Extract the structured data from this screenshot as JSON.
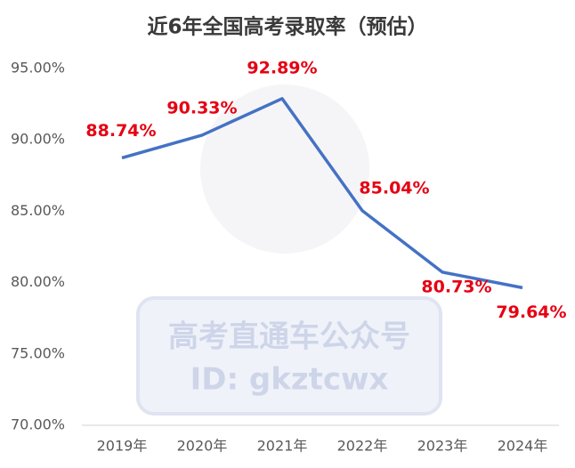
{
  "chart_data": {
    "type": "line",
    "title": "近6年全国高考录取率（预估）",
    "categories": [
      "2019年",
      "2020年",
      "2021年",
      "2022年",
      "2023年",
      "2024年"
    ],
    "series": [
      {
        "name": "录取率",
        "color": "#4472c4",
        "values": [
          88.74,
          90.33,
          92.89,
          85.04,
          80.73,
          79.64
        ],
        "value_labels": [
          "88.74%",
          "90.33%",
          "92.89%",
          "85.04%",
          "80.73%",
          "79.64%"
        ]
      }
    ],
    "value_label_color": "#e60012",
    "ylim": [
      70,
      95
    ],
    "yticks": [
      {
        "value": 70,
        "label": "70.00%"
      },
      {
        "value": 75,
        "label": "75.00%"
      },
      {
        "value": 80,
        "label": "80.00%"
      },
      {
        "value": 85,
        "label": "85.00%"
      },
      {
        "value": 90,
        "label": "90.00%"
      },
      {
        "value": 95,
        "label": "95.00%"
      }
    ],
    "grid": false,
    "watermark": [
      "高考直通车公众号",
      "ID: gkztcwx"
    ]
  }
}
